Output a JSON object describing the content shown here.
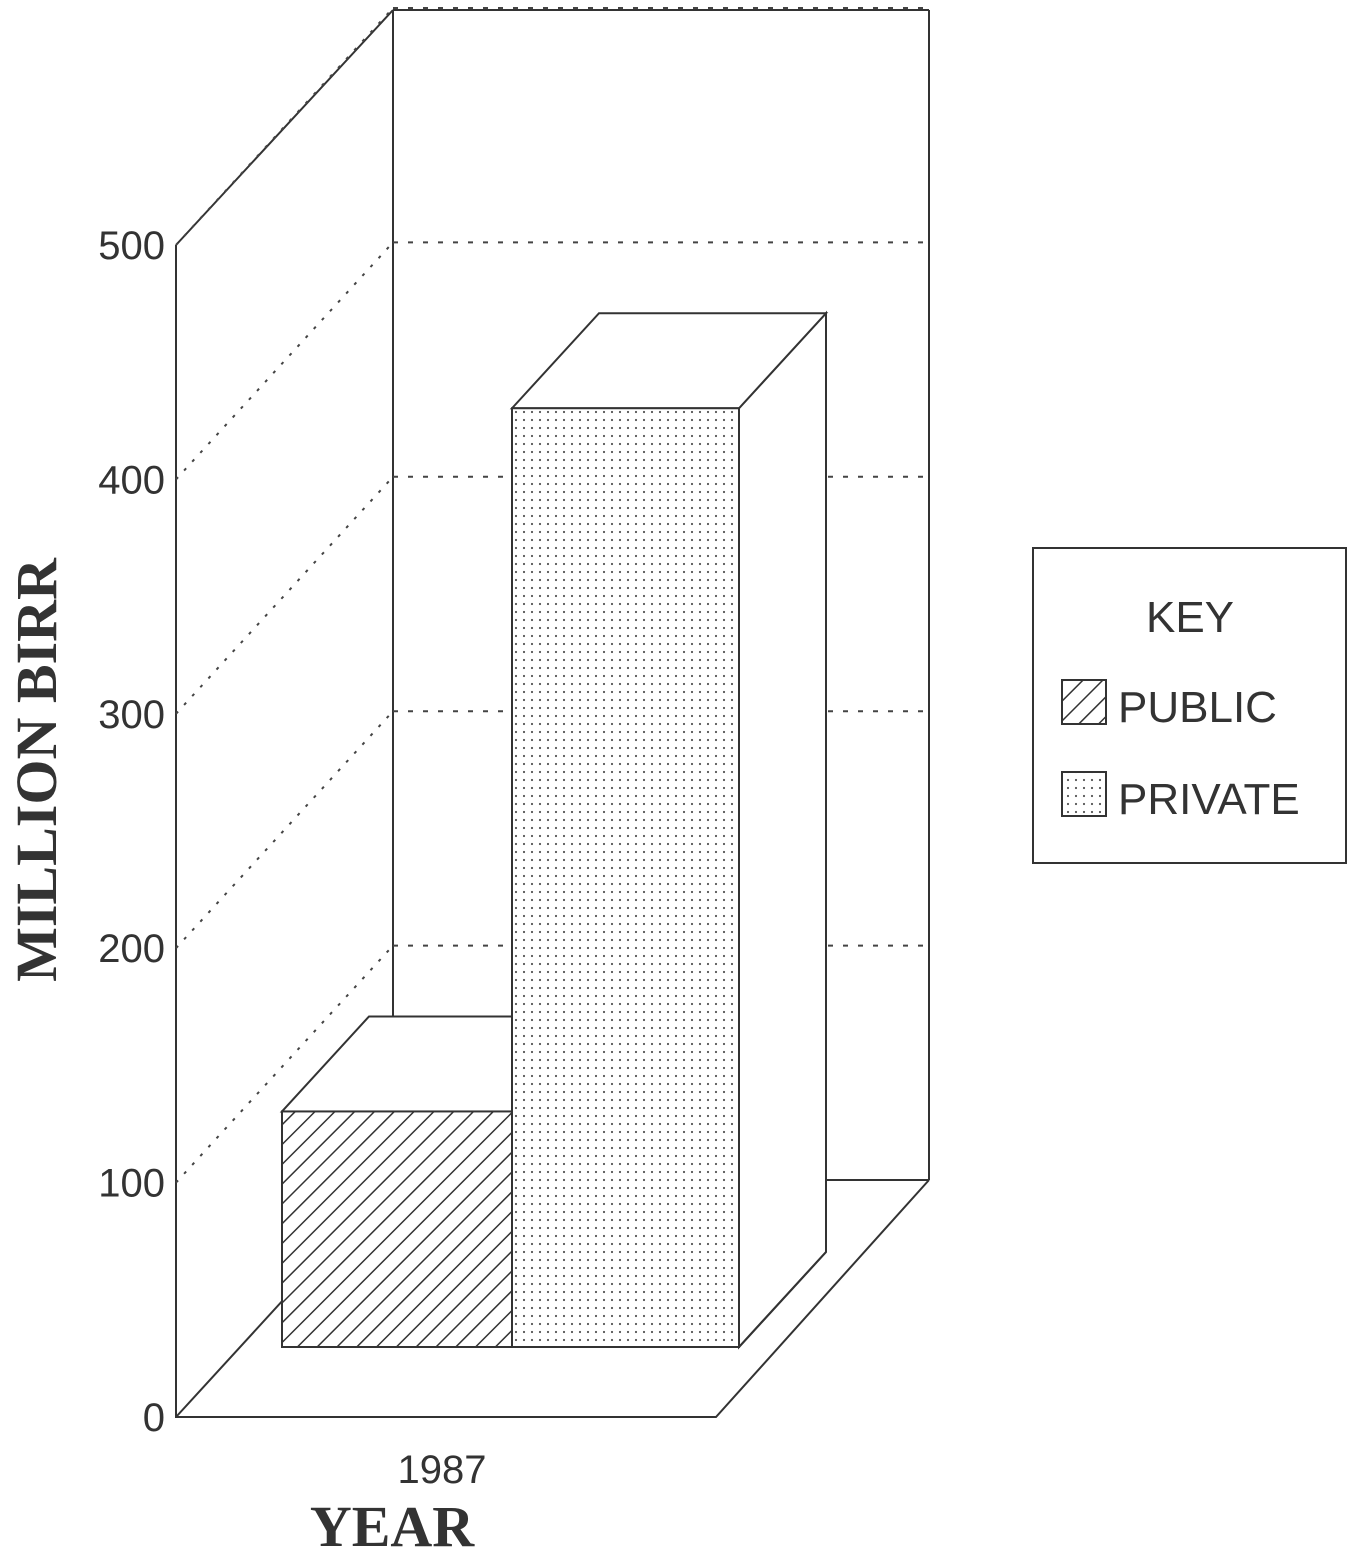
{
  "chart_data": {
    "type": "bar",
    "categories": [
      "1987"
    ],
    "series": [
      {
        "name": "PUBLIC",
        "values": [
          115
        ],
        "pattern": "hatch"
      },
      {
        "name": "PRIVATE",
        "values": [
          415
        ],
        "pattern": "dots"
      }
    ],
    "xlabel": "YEAR",
    "ylabel": "MILLION BIRR",
    "ylim": [
      0,
      500
    ],
    "yticks": [
      "0",
      "100",
      "200",
      "300",
      "400",
      "500"
    ],
    "grid": true,
    "legend": {
      "title": "KEY",
      "placement": "right"
    }
  }
}
